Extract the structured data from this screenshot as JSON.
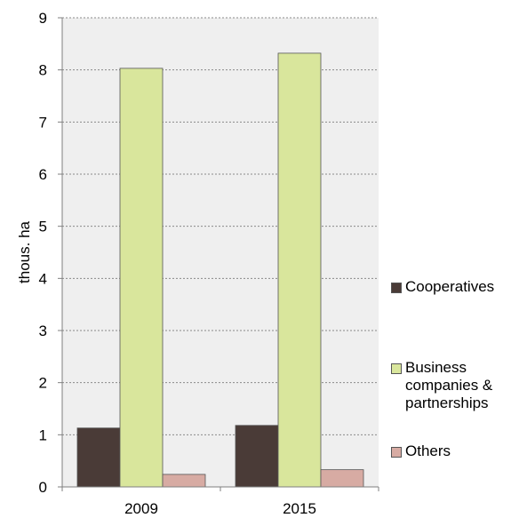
{
  "chart_data": {
    "type": "bar",
    "title": "",
    "xlabel": "",
    "ylabel": "thous. ha",
    "ylim": [
      0,
      9
    ],
    "yticks": [
      "0",
      "1",
      "2",
      "3",
      "4",
      "5",
      "6",
      "7",
      "8",
      "9"
    ],
    "categories": [
      "2009",
      "2015"
    ],
    "grid": true,
    "legend_position": "right",
    "series": [
      {
        "name": "Cooperatives",
        "values": [
          1.13,
          1.18
        ],
        "color": "#4a3b37"
      },
      {
        "name": "Business companies & partnerships",
        "values": [
          8.03,
          8.32
        ],
        "color": "#d9e69c"
      },
      {
        "name": "Others",
        "values": [
          0.24,
          0.33
        ],
        "color": "#d7aba3"
      }
    ],
    "plot_background": "#efefef"
  }
}
